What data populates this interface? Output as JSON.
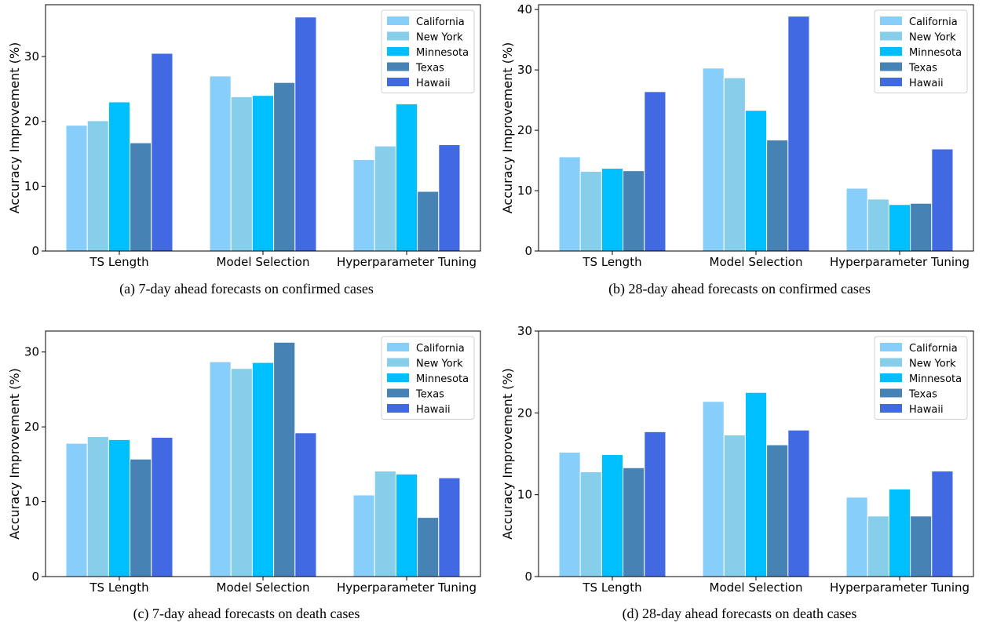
{
  "colors": {
    "California": "#87CEFA",
    "New York": "#87CEEB",
    "Minnesota": "#00BFFF",
    "Texas": "#4682B4",
    "Hawaii": "#4169E1"
  },
  "chart_data": [
    {
      "type": "bar",
      "caption": "(a) 7-day ahead forecasts on confirmed cases",
      "categories": [
        "TS Length",
        "Model Selection",
        "Hyperparameter Tuning"
      ],
      "ylabel": "Accuracy Improvement (%)",
      "xlabel": "",
      "ylim": [
        0,
        38
      ],
      "yticks": [
        0,
        10,
        20,
        30
      ],
      "legend_position": "top-right",
      "grid": false,
      "series": [
        {
          "name": "California",
          "values": [
            19.4,
            27.0,
            14.1
          ]
        },
        {
          "name": "New York",
          "values": [
            20.1,
            23.8,
            16.2
          ]
        },
        {
          "name": "Minnesota",
          "values": [
            23.0,
            24.0,
            22.7
          ]
        },
        {
          "name": "Texas",
          "values": [
            16.7,
            26.0,
            9.2
          ]
        },
        {
          "name": "Hawaii",
          "values": [
            30.5,
            36.1,
            16.4
          ]
        }
      ]
    },
    {
      "type": "bar",
      "caption": "(b) 28-day ahead forecasts on confirmed cases",
      "categories": [
        "TS Length",
        "Model Selection",
        "Hyperparameter Tuning"
      ],
      "ylabel": "Accuracy Improvement (%)",
      "xlabel": "",
      "ylim": [
        0,
        40.8
      ],
      "yticks": [
        0,
        10,
        20,
        30,
        40
      ],
      "legend_position": "top-right",
      "grid": false,
      "series": [
        {
          "name": "California",
          "values": [
            15.6,
            30.3,
            10.4
          ]
        },
        {
          "name": "New York",
          "values": [
            13.2,
            28.7,
            8.6
          ]
        },
        {
          "name": "Minnesota",
          "values": [
            13.7,
            23.3,
            7.7
          ]
        },
        {
          "name": "Texas",
          "values": [
            13.3,
            18.4,
            7.9
          ]
        },
        {
          "name": "Hawaii",
          "values": [
            26.4,
            38.9,
            16.9
          ]
        }
      ]
    },
    {
      "type": "bar",
      "caption": "(c) 7-day ahead forecasts on death cases",
      "categories": [
        "TS Length",
        "Model Selection",
        "Hyperparameter Tuning"
      ],
      "ylabel": "Accuracy Improvement (%)",
      "xlabel": "",
      "ylim": [
        0,
        32.8
      ],
      "yticks": [
        0,
        10,
        20,
        30
      ],
      "legend_position": "top-right",
      "grid": false,
      "series": [
        {
          "name": "California",
          "values": [
            17.8,
            28.7,
            10.9
          ]
        },
        {
          "name": "New York",
          "values": [
            18.7,
            27.8,
            14.1
          ]
        },
        {
          "name": "Minnesota",
          "values": [
            18.3,
            28.6,
            13.7
          ]
        },
        {
          "name": "Texas",
          "values": [
            15.7,
            31.3,
            7.9
          ]
        },
        {
          "name": "Hawaii",
          "values": [
            18.6,
            19.2,
            13.2
          ]
        }
      ]
    },
    {
      "type": "bar",
      "caption": "(d) 28-day ahead forecasts on death cases",
      "categories": [
        "TS Length",
        "Model Selection",
        "Hyperparameter Tuning"
      ],
      "ylabel": "Accuracy Improvement (%)",
      "xlabel": "",
      "ylim": [
        0,
        30
      ],
      "yticks": [
        0,
        10,
        20,
        30
      ],
      "legend_position": "top-right",
      "grid": false,
      "series": [
        {
          "name": "California",
          "values": [
            15.2,
            21.4,
            9.7
          ]
        },
        {
          "name": "New York",
          "values": [
            12.8,
            17.3,
            7.4
          ]
        },
        {
          "name": "Minnesota",
          "values": [
            14.9,
            22.5,
            10.7
          ]
        },
        {
          "name": "Texas",
          "values": [
            13.3,
            16.1,
            7.4
          ]
        },
        {
          "name": "Hawaii",
          "values": [
            17.7,
            17.9,
            12.9
          ]
        }
      ]
    }
  ]
}
